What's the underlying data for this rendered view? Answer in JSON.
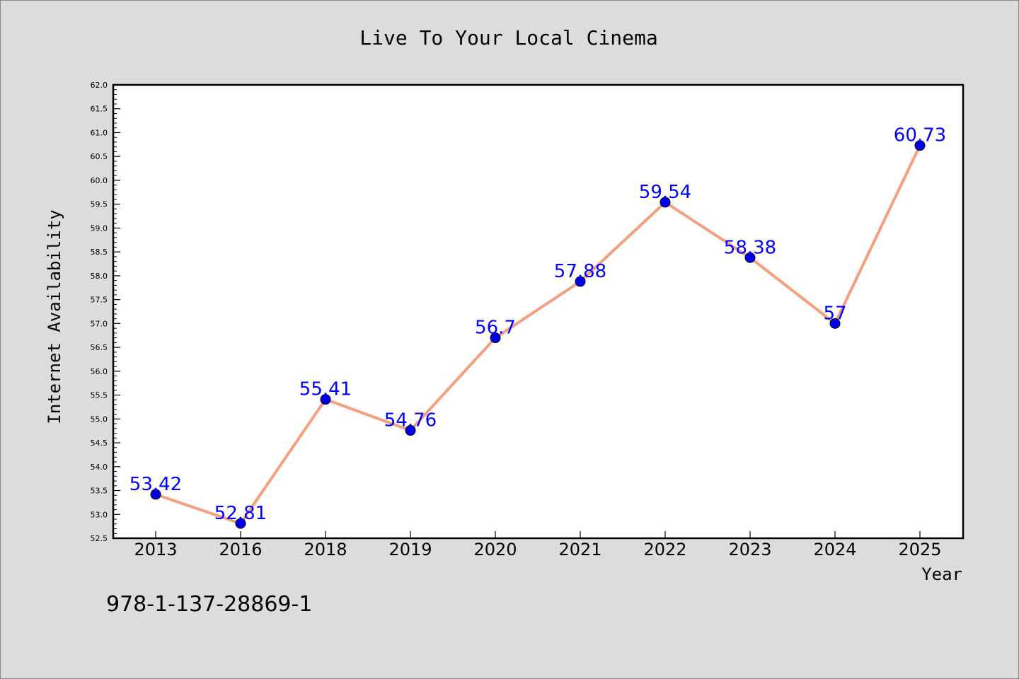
{
  "chart_data": {
    "type": "line",
    "title": "Live To Your Local Cinema",
    "xlabel": "Year",
    "ylabel": "Internet Availability",
    "categories": [
      "2013",
      "2016",
      "2018",
      "2019",
      "2020",
      "2021",
      "2022",
      "2023",
      "2024",
      "2025"
    ],
    "series": [
      {
        "values": [
          53.42,
          52.81,
          55.41,
          54.76,
          56.7,
          57.88,
          59.54,
          58.38,
          57,
          60.73
        ],
        "data_labels": [
          "53.42",
          "52.81",
          "55.41",
          "54.76",
          "56.7",
          "57.88",
          "59.54",
          "58.38",
          "57",
          "60.73"
        ],
        "line_color": "#f4a07e",
        "marker_color": "#0000ee"
      }
    ],
    "ylim": [
      52.5,
      62.0
    ],
    "yticks": [
      "52.5",
      "53.0",
      "53.5",
      "54.0",
      "54.5",
      "55.0",
      "55.5",
      "56.0",
      "56.5",
      "57.0",
      "57.5",
      "58.0",
      "58.5",
      "59.0",
      "59.5",
      "60.0",
      "60.5",
      "61.0",
      "61.5",
      "62.0"
    ],
    "grid": false,
    "legend": "none"
  },
  "footer": {
    "isbn": "978-1-137-28869-1"
  },
  "colors": {
    "background": "#dcdcdc",
    "plot_background": "#ffffff",
    "data_label": "#0000ff"
  }
}
